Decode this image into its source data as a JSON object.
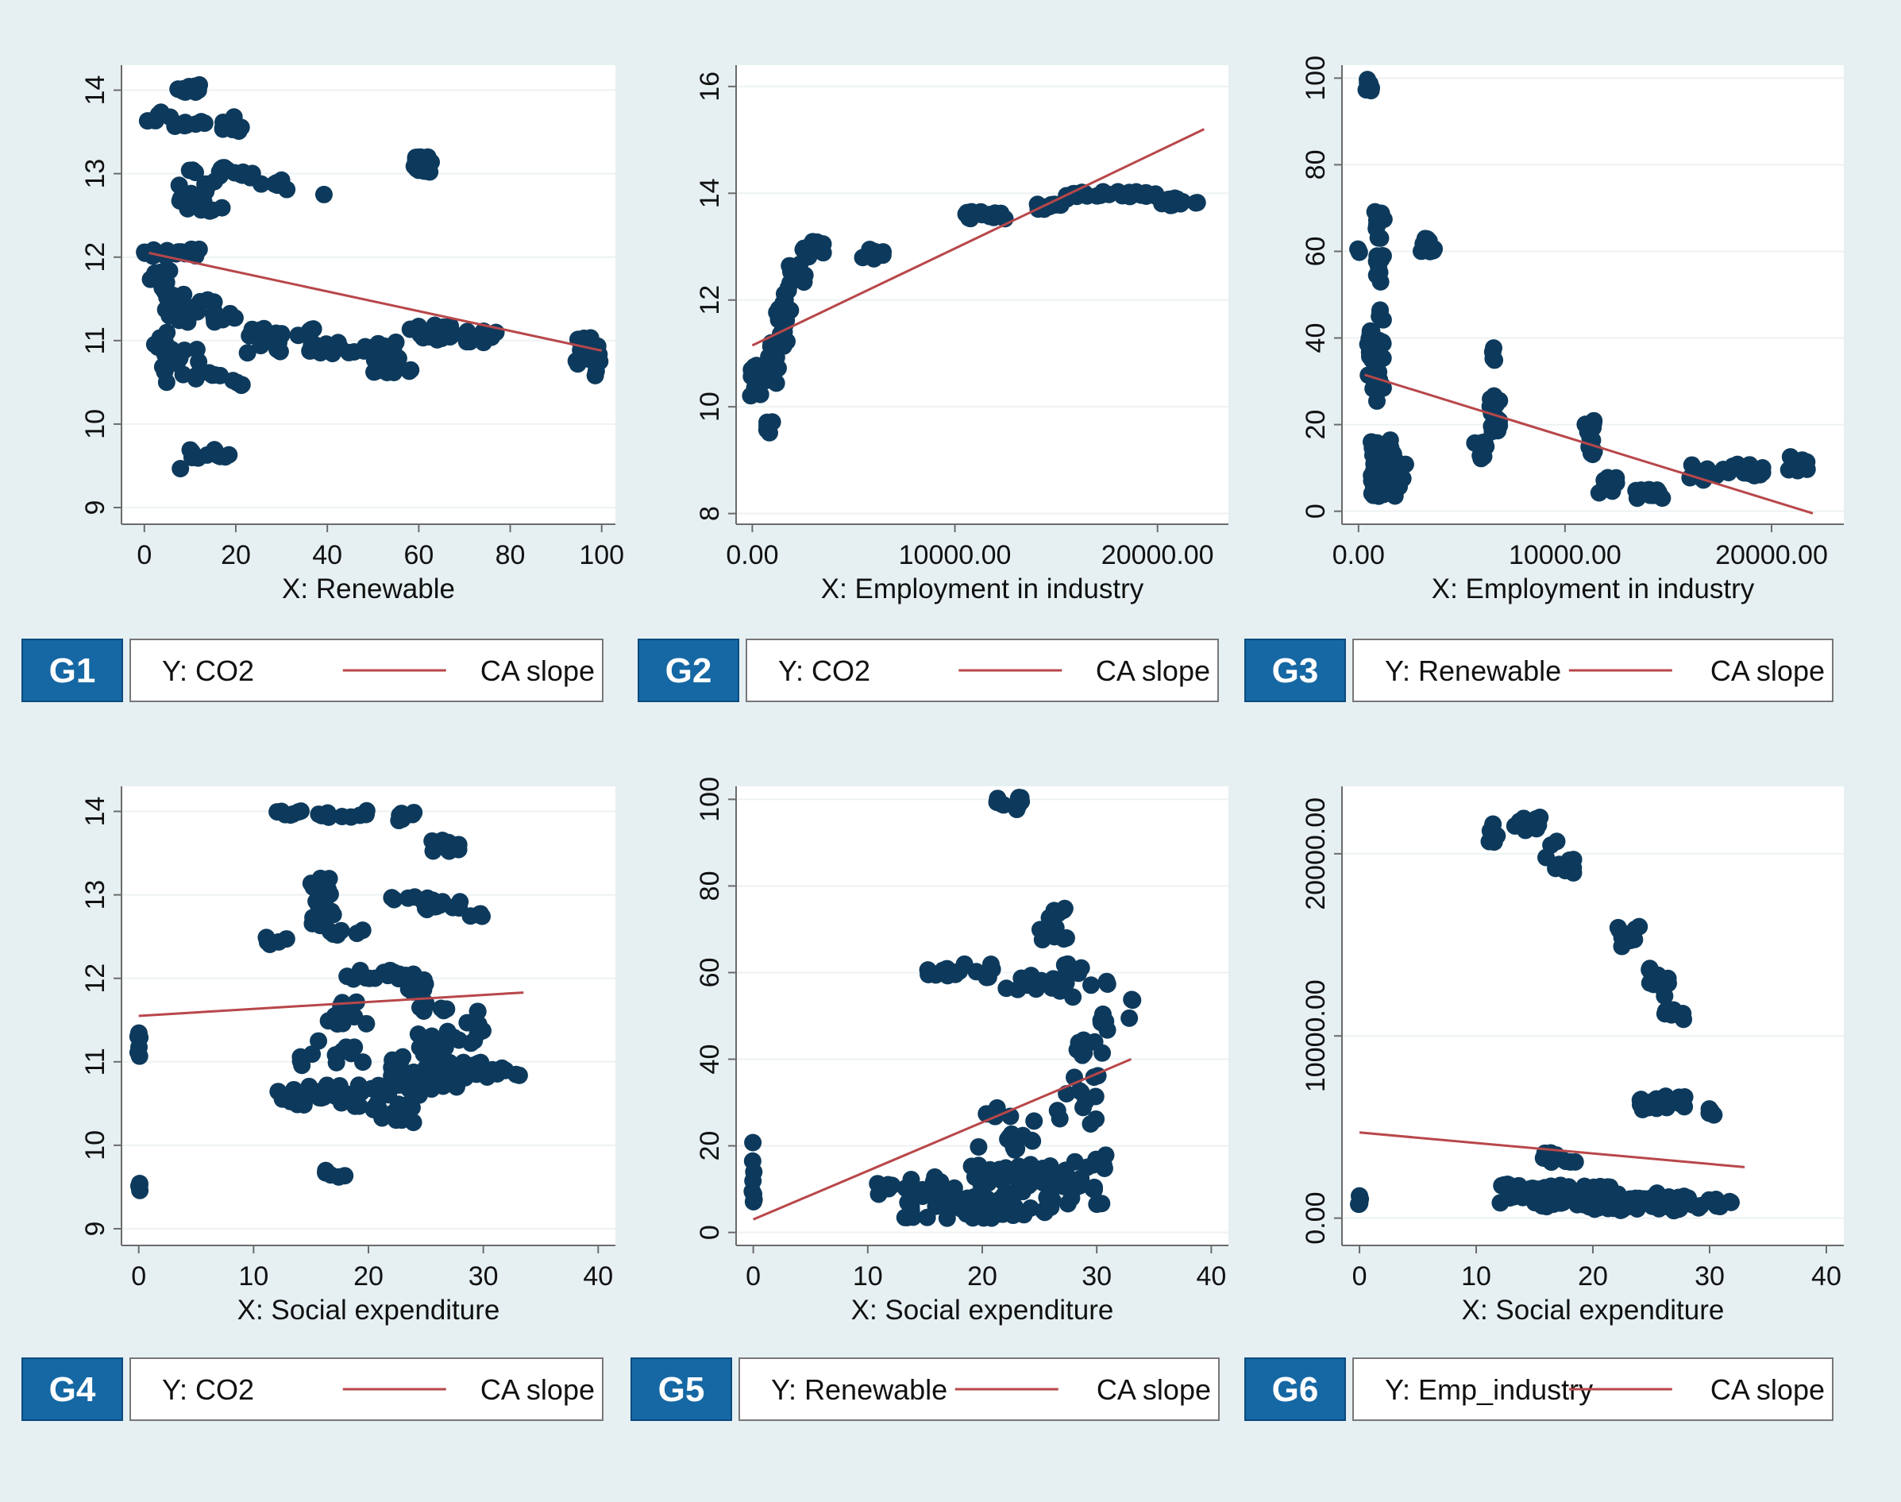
{
  "colors": {
    "background": "#e6f0f2",
    "plot_bg": "#ffffff",
    "grid": "#eef2f3",
    "point": "#0d3a5c",
    "slope": "#b8474a",
    "badge": "#1668a4",
    "axis": "#6b6b6b"
  },
  "chart_data": [
    {
      "id": "G1",
      "type": "scatter",
      "xlabel": "X: Renewable",
      "xlim": [
        -5,
        103
      ],
      "ylim": [
        8.8,
        14.3
      ],
      "xticks": [
        0,
        20,
        40,
        60,
        80,
        100
      ],
      "xtick_labels": [
        "0",
        "20",
        "40",
        "60",
        "80",
        "100"
      ],
      "yticks": [
        9,
        10,
        11,
        12,
        13,
        14
      ],
      "ytick_labels": [
        "9",
        "10",
        "11",
        "12",
        "13",
        "14"
      ],
      "legend": {
        "badge": "G1",
        "y_label": "Y: CO2",
        "line_label": "CA slope"
      },
      "slope": {
        "x1": 1,
        "y1": 12.05,
        "x2": 100,
        "y2": 10.88
      },
      "clusters": [
        [
          10,
          14.02,
          3,
          0.05,
          12
        ],
        [
          3,
          13.72,
          1,
          0.02,
          3
        ],
        [
          10,
          13.62,
          10,
          0.06,
          16
        ],
        [
          20,
          13.53,
          3,
          0.03,
          5
        ],
        [
          12,
          12.8,
          5,
          0.25,
          20
        ],
        [
          20,
          13.0,
          4,
          0.08,
          12
        ],
        [
          27,
          12.9,
          3,
          0.05,
          6
        ],
        [
          31,
          12.82,
          0.5,
          0.02,
          1
        ],
        [
          39,
          12.75,
          0.5,
          0.02,
          1
        ],
        [
          6,
          12.05,
          6,
          0.05,
          16
        ],
        [
          3,
          11.7,
          3,
          0.2,
          12
        ],
        [
          10,
          11.4,
          6,
          0.18,
          25
        ],
        [
          18,
          11.3,
          2,
          0.05,
          4
        ],
        [
          3,
          11.0,
          2,
          0.1,
          10
        ],
        [
          8,
          10.7,
          4,
          0.2,
          16
        ],
        [
          14,
          10.6,
          3,
          0.06,
          6
        ],
        [
          21,
          10.5,
          2,
          0.04,
          4
        ],
        [
          30,
          11.0,
          8,
          0.15,
          25
        ],
        [
          45,
          10.9,
          10,
          0.08,
          20
        ],
        [
          55,
          10.7,
          5,
          0.12,
          20
        ],
        [
          61,
          13.1,
          2,
          0.1,
          20
        ],
        [
          63,
          11.1,
          5,
          0.1,
          15
        ],
        [
          71,
          11.05,
          6,
          0.08,
          12
        ],
        [
          97,
          10.8,
          3,
          0.25,
          15
        ],
        [
          15,
          9.65,
          5,
          0.06,
          14
        ],
        [
          8,
          9.45,
          0.5,
          0.02,
          1
        ]
      ]
    },
    {
      "id": "G2",
      "type": "scatter",
      "xlabel": "X: Employment in industry",
      "xlim": [
        -800,
        23500
      ],
      "ylim": [
        7.8,
        16.4
      ],
      "xticks": [
        0,
        10000,
        20000
      ],
      "xtick_labels": [
        "0.00",
        "10000.00",
        "20000.00"
      ],
      "yticks": [
        8,
        10,
        12,
        14,
        16
      ],
      "ytick_labels": [
        "8",
        "10",
        "12",
        "14",
        "16"
      ],
      "legend": {
        "badge": "G2",
        "y_label": "Y: CO2",
        "line_label": "CA slope"
      },
      "slope": {
        "x1": 0,
        "y1": 11.15,
        "x2": 22300,
        "y2": 15.2
      },
      "clusters": [
        [
          200,
          10.5,
          300,
          0.3,
          15
        ],
        [
          900,
          10.8,
          500,
          0.4,
          16
        ],
        [
          1500,
          11.5,
          300,
          0.4,
          14
        ],
        [
          1700,
          12.0,
          200,
          0.3,
          10
        ],
        [
          2200,
          12.5,
          400,
          0.2,
          12
        ],
        [
          3000,
          12.95,
          500,
          0.15,
          14
        ],
        [
          800,
          9.6,
          200,
          0.12,
          6
        ],
        [
          6000,
          12.85,
          600,
          0.1,
          14
        ],
        [
          11500,
          13.6,
          1000,
          0.08,
          15
        ],
        [
          14500,
          13.75,
          800,
          0.05,
          10
        ],
        [
          16000,
          13.95,
          600,
          0.08,
          10
        ],
        [
          18500,
          13.98,
          1500,
          0.05,
          20
        ],
        [
          21000,
          13.85,
          1000,
          0.08,
          15
        ]
      ]
    },
    {
      "id": "G3",
      "type": "scatter",
      "xlabel": "X: Employment in industry",
      "xlim": [
        -800,
        23500
      ],
      "ylim": [
        -3,
        103
      ],
      "xticks": [
        0,
        10000,
        20000
      ],
      "xtick_labels": [
        "0.00",
        "10000.00",
        "20000.00"
      ],
      "yticks": [
        0,
        20,
        40,
        60,
        80,
        100
      ],
      "ytick_labels": [
        "0",
        "20",
        "40",
        "60",
        "80",
        "100"
      ],
      "legend": {
        "badge": "G3",
        "y_label": "Y: Renewable",
        "line_label": "CA slope"
      },
      "slope": {
        "x1": 300,
        "y1": 31.5,
        "x2": 22000,
        "y2": -0.5
      },
      "clusters": [
        [
          500,
          98,
          150,
          2,
          8
        ],
        [
          1000,
          62,
          250,
          10,
          20
        ],
        [
          800,
          35,
          400,
          12,
          30
        ],
        [
          1200,
          10,
          600,
          7,
          40
        ],
        [
          2000,
          7,
          400,
          4,
          15
        ],
        [
          3400,
          61,
          400,
          2,
          12
        ],
        [
          0,
          60,
          60,
          1,
          2
        ],
        [
          6500,
          36,
          100,
          3,
          4
        ],
        [
          6600,
          22,
          250,
          5,
          16
        ],
        [
          5900,
          14,
          300,
          2,
          12
        ],
        [
          11200,
          17,
          250,
          4,
          12
        ],
        [
          12000,
          6,
          500,
          2,
          10
        ],
        [
          14000,
          4,
          900,
          1,
          12
        ],
        [
          17800,
          9,
          1800,
          2,
          24
        ],
        [
          21500,
          11,
          700,
          2,
          10
        ]
      ]
    },
    {
      "id": "G4",
      "type": "scatter",
      "xlabel": "X: Social expenditure",
      "xlim": [
        -1.5,
        41.5
      ],
      "ylim": [
        8.8,
        14.3
      ],
      "xticks": [
        0,
        10,
        20,
        30,
        40
      ],
      "xtick_labels": [
        "0",
        "10",
        "20",
        "30",
        "40"
      ],
      "yticks": [
        9,
        10,
        11,
        12,
        13,
        14
      ],
      "ytick_labels": [
        "9",
        "10",
        "11",
        "12",
        "13",
        "14"
      ],
      "legend": {
        "badge": "G4",
        "y_label": "Y: CO2",
        "line_label": "CA slope"
      },
      "slope": {
        "x1": 0,
        "y1": 11.55,
        "x2": 33.5,
        "y2": 11.83
      },
      "clusters": [
        [
          0,
          11.2,
          0.1,
          0.15,
          8
        ],
        [
          0,
          9.5,
          0.1,
          0.05,
          4
        ],
        [
          16,
          13.97,
          4,
          0.04,
          16
        ],
        [
          23,
          13.9,
          1,
          0.1,
          6
        ],
        [
          26,
          13.6,
          2,
          0.08,
          10
        ],
        [
          12,
          12.45,
          1,
          0.05,
          5
        ],
        [
          16,
          12.9,
          1,
          0.3,
          20
        ],
        [
          18,
          12.5,
          2,
          0.1,
          6
        ],
        [
          25,
          12.9,
          3,
          0.08,
          16
        ],
        [
          29,
          12.75,
          1,
          0.05,
          4
        ],
        [
          21,
          12.05,
          3,
          0.06,
          14
        ],
        [
          24,
          11.8,
          1.5,
          0.25,
          14
        ],
        [
          18,
          11.6,
          2,
          0.15,
          12
        ],
        [
          27,
          11.3,
          3,
          0.4,
          30
        ],
        [
          17,
          11.1,
          3,
          0.15,
          12
        ],
        [
          15,
          10.6,
          3,
          0.12,
          20
        ],
        [
          21,
          10.5,
          3,
          0.25,
          30
        ],
        [
          25,
          10.85,
          3,
          0.25,
          40
        ],
        [
          30,
          10.9,
          2,
          0.1,
          12
        ],
        [
          33,
          10.85,
          0.2,
          0.03,
          2
        ],
        [
          17,
          9.65,
          1,
          0.05,
          6
        ]
      ]
    },
    {
      "id": "G5",
      "type": "scatter",
      "xlabel": "X: Social expenditure",
      "xlim": [
        -1.5,
        41.5
      ],
      "ylim": [
        -3,
        103
      ],
      "xticks": [
        0,
        10,
        20,
        30,
        40
      ],
      "xtick_labels": [
        "0",
        "10",
        "20",
        "30",
        "40"
      ],
      "yticks": [
        0,
        20,
        40,
        60,
        80,
        100
      ],
      "ytick_labels": [
        "0",
        "20",
        "40",
        "60",
        "80",
        "100"
      ],
      "legend": {
        "badge": "G5",
        "y_label": "Y: Renewable",
        "line_label": "CA slope"
      },
      "slope": {
        "x1": 0,
        "y1": 3,
        "x2": 33,
        "y2": 40
      },
      "clusters": [
        [
          0,
          14,
          0.1,
          7,
          8
        ],
        [
          22.5,
          99,
          1.5,
          1.5,
          12
        ],
        [
          18,
          60,
          3,
          2,
          16
        ],
        [
          25,
          57,
          3,
          3,
          12
        ],
        [
          26,
          70,
          1.5,
          5,
          14
        ],
        [
          29,
          58,
          2,
          4,
          10
        ],
        [
          31,
          50,
          2,
          4,
          6
        ],
        [
          29,
          40,
          1.5,
          5,
          10
        ],
        [
          28,
          30,
          2,
          5,
          10
        ],
        [
          33,
          53,
          0.3,
          1,
          2
        ],
        [
          18,
          8,
          5,
          5,
          60
        ],
        [
          24,
          10,
          5,
          6,
          60
        ],
        [
          22,
          25,
          3,
          6,
          16
        ],
        [
          29,
          12,
          2,
          6,
          16
        ],
        [
          12,
          10,
          1.5,
          2,
          6
        ]
      ]
    },
    {
      "id": "G6",
      "type": "scatter",
      "xlabel": "X: Social expenditure",
      "xlim": [
        -1.5,
        41.5
      ],
      "ylim": [
        -1500,
        23700
      ],
      "xticks": [
        0,
        10,
        20,
        30,
        40
      ],
      "xtick_labels": [
        "0",
        "10",
        "20",
        "30",
        "40"
      ],
      "yticks": [
        0,
        10000,
        20000
      ],
      "ytick_labels": [
        "0.00",
        "10000.00",
        "20000.00"
      ],
      "legend": {
        "badge": "G6",
        "y_label": "Y: Emp_industry",
        "line_label": "CA slope"
      },
      "slope": {
        "x1": 0,
        "y1": 4700,
        "x2": 33,
        "y2": 2800
      },
      "clusters": [
        [
          0,
          1000,
          0.1,
          300,
          6
        ],
        [
          11.5,
          21200,
          0.4,
          600,
          8
        ],
        [
          14,
          21600,
          1.5,
          400,
          10
        ],
        [
          17,
          19800,
          1.5,
          900,
          10
        ],
        [
          23,
          15500,
          1,
          600,
          10
        ],
        [
          25.5,
          13000,
          1,
          900,
          12
        ],
        [
          27,
          11200,
          1,
          300,
          6
        ],
        [
          26,
          6300,
          2,
          400,
          20
        ],
        [
          30,
          5800,
          0.5,
          200,
          4
        ],
        [
          13,
          1800,
          1.5,
          200,
          8
        ],
        [
          17,
          1200,
          5,
          600,
          60
        ],
        [
          23,
          900,
          5,
          500,
          50
        ],
        [
          29,
          800,
          3,
          300,
          16
        ],
        [
          17,
          3300,
          1.5,
          300,
          12
        ]
      ]
    }
  ]
}
